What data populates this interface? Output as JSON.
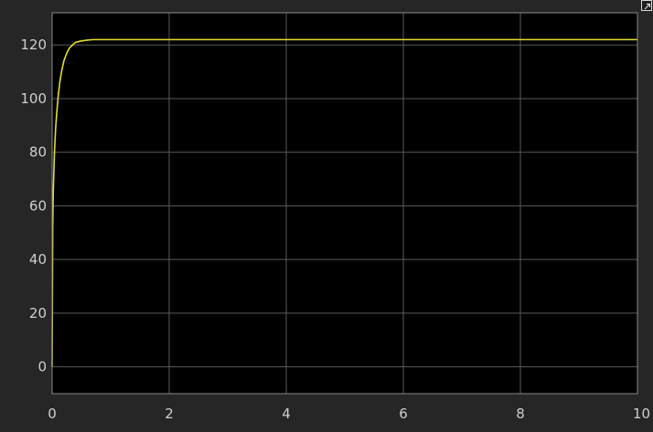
{
  "icons": {
    "undock": "undock-arrow-icon"
  },
  "colors": {
    "background": "#262626",
    "axes_background": "#000000",
    "grid": "#5a5a5a",
    "tick_text": "#cfcfcf",
    "line": "#e6dc2e"
  },
  "chart_data": {
    "type": "line",
    "title": "",
    "xlabel": "",
    "ylabel": "",
    "xlim": [
      0,
      10
    ],
    "ylim": [
      -10,
      132
    ],
    "xticks": [
      0,
      2,
      4,
      6,
      8,
      10
    ],
    "yticks": [
      0,
      20,
      40,
      60,
      80,
      100,
      120
    ],
    "grid": true,
    "legend": "none",
    "series": [
      {
        "color": "#e6dc2e",
        "x": [
          0,
          0.01,
          0.02,
          0.04,
          0.06,
          0.08,
          0.1,
          0.13,
          0.16,
          0.2,
          0.25,
          0.3,
          0.35,
          0.4,
          0.5,
          0.6,
          0.7,
          0.8,
          1.0,
          1.5,
          2,
          4,
          6,
          8,
          10
        ],
        "y": [
          0,
          52,
          66,
          80,
          89,
          95,
          100,
          106,
          110,
          114,
          117,
          119,
          120,
          121,
          121.5,
          121.8,
          122,
          122,
          122,
          122,
          122,
          122,
          122,
          122,
          122
        ]
      }
    ]
  }
}
